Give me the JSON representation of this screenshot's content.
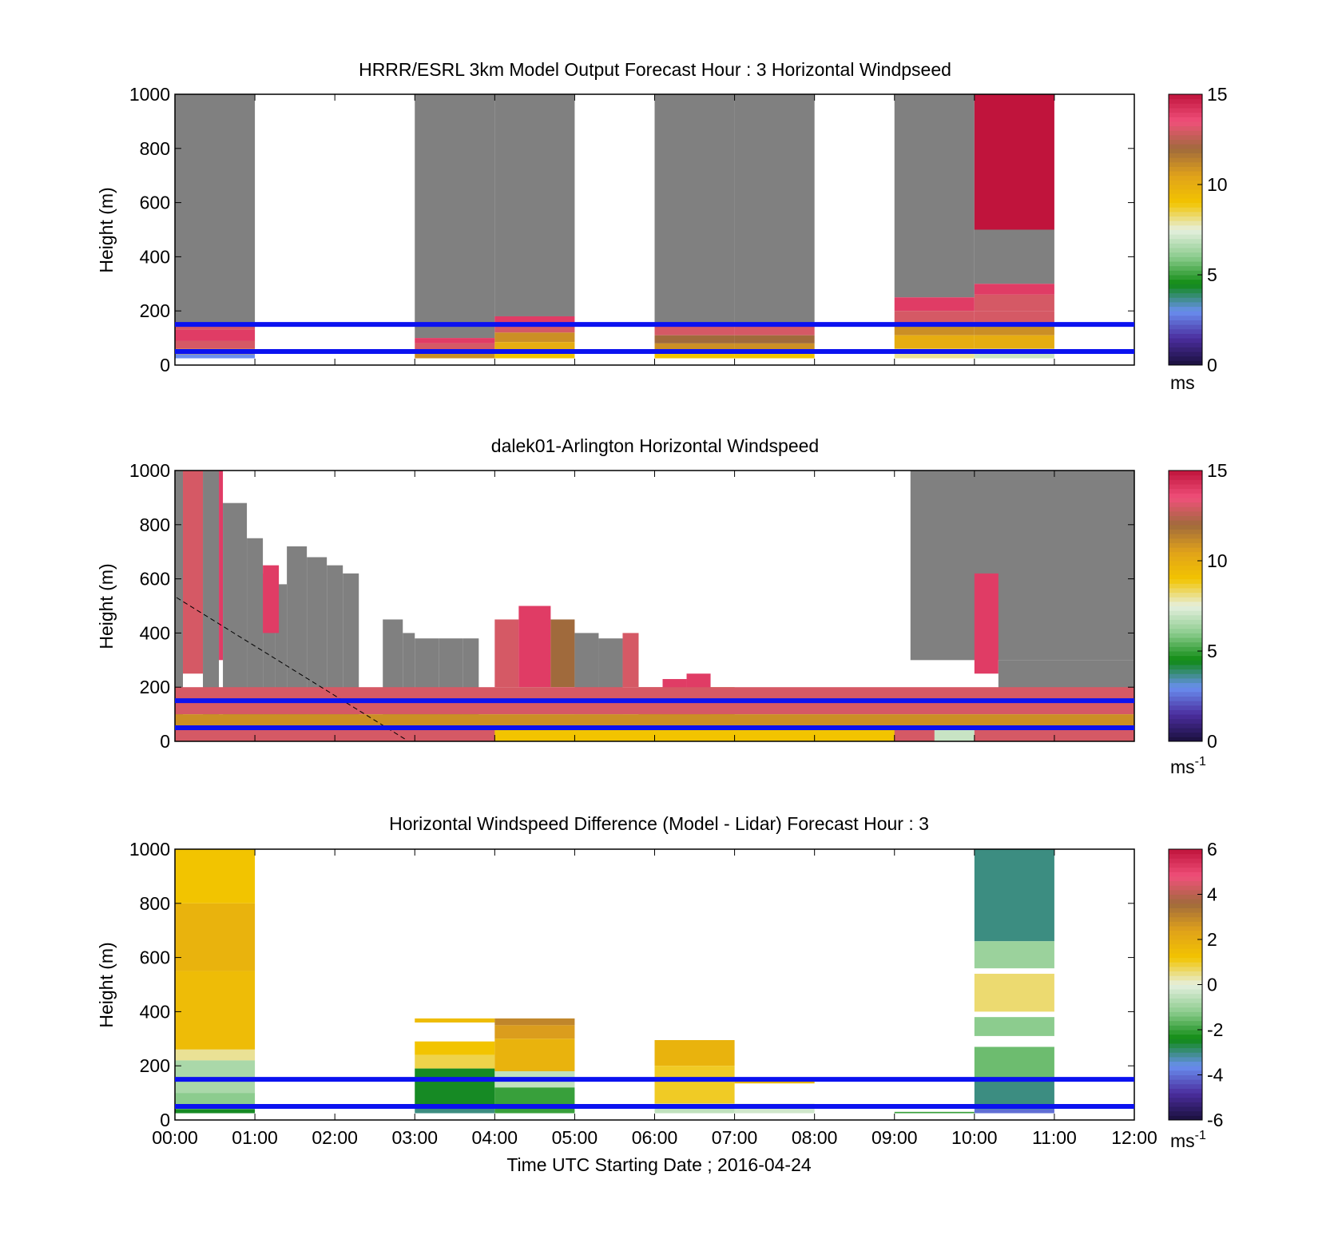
{
  "figure": {
    "x_label": "Time UTC  Starting Date ; 2016-04-24",
    "x_ticks": [
      "00:00",
      "01:00",
      "02:00",
      "03:00",
      "04:00",
      "05:00",
      "06:00",
      "07:00",
      "08:00",
      "09:00",
      "10:00",
      "11:00",
      "12:00"
    ],
    "y_label": "Height (m)",
    "guide_lines": {
      "heights_m": [
        150,
        50
      ],
      "color": "#0b12f0"
    }
  },
  "colors": {
    "gray": "#808080",
    "speed_scale": [
      "#1a0f3c",
      "#4b2e9e",
      "#6a8ff0",
      "#0e8a12",
      "#8ccc8e",
      "#e6f0df",
      "#f2c400",
      "#e0a21a",
      "#a06a3c",
      "#f0507a",
      "#c0143c"
    ],
    "diff_scale": [
      "#1a0f3c",
      "#4b2e9e",
      "#6a8ff0",
      "#0e8a12",
      "#8ccc8e",
      "#e6f0df",
      "#f2c400",
      "#e0a21a",
      "#a06a3c",
      "#f0507a",
      "#c0143c"
    ]
  },
  "chart_data": [
    {
      "type": "heatmap",
      "title": "HRRR/ESRL 3km Model Output   Forecast Hour : 3 Horizontal Windpseed",
      "xlabel": "",
      "ylabel": "Height (m)",
      "xlim": [
        0,
        12
      ],
      "ylim": [
        0,
        1000
      ],
      "y_ticks": [
        "0",
        "200",
        "400",
        "600",
        "800",
        "1000"
      ],
      "colorbar": {
        "min": 0,
        "max": 15,
        "ticks": [
          "0",
          "5",
          "10",
          "15"
        ],
        "unit": "ms"
      },
      "cells": [
        [
          0,
          1,
          150,
          1000,
          -1
        ],
        [
          0,
          1,
          130,
          150,
          13
        ],
        [
          0,
          1,
          90,
          130,
          14
        ],
        [
          0,
          1,
          60,
          90,
          13
        ],
        [
          0,
          1,
          40,
          60,
          11
        ],
        [
          0,
          1,
          25,
          40,
          3
        ],
        [
          3,
          4,
          100,
          1000,
          -1
        ],
        [
          3,
          4,
          80,
          100,
          14
        ],
        [
          3,
          4,
          55,
          80,
          13
        ],
        [
          3,
          4,
          25,
          55,
          11
        ],
        [
          4,
          5,
          180,
          1000,
          -1
        ],
        [
          4,
          5,
          150,
          180,
          14
        ],
        [
          4,
          5,
          120,
          150,
          13
        ],
        [
          4,
          5,
          85,
          120,
          11
        ],
        [
          4,
          5,
          55,
          85,
          10
        ],
        [
          4,
          5,
          25,
          55,
          9
        ],
        [
          6,
          7,
          150,
          1000,
          -1
        ],
        [
          6,
          7,
          110,
          150,
          13
        ],
        [
          6,
          7,
          80,
          110,
          12
        ],
        [
          6,
          7,
          55,
          80,
          11
        ],
        [
          6,
          7,
          25,
          55,
          9
        ],
        [
          7,
          8,
          150,
          1000,
          -1
        ],
        [
          7,
          8,
          110,
          150,
          13
        ],
        [
          7,
          8,
          80,
          110,
          12
        ],
        [
          7,
          8,
          55,
          80,
          11
        ],
        [
          7,
          8,
          25,
          55,
          9
        ],
        [
          9,
          10,
          250,
          1000,
          -1
        ],
        [
          9,
          10,
          200,
          250,
          14
        ],
        [
          9,
          10,
          150,
          200,
          13
        ],
        [
          9,
          10,
          110,
          150,
          11
        ],
        [
          9,
          10,
          60,
          110,
          10
        ],
        [
          9,
          10,
          25,
          60,
          8
        ],
        [
          10,
          11,
          500,
          1000,
          15
        ],
        [
          10,
          11,
          300,
          500,
          -1
        ],
        [
          10,
          11,
          260,
          300,
          14
        ],
        [
          10,
          11,
          200,
          260,
          13
        ],
        [
          10,
          11,
          150,
          200,
          13
        ],
        [
          10,
          11,
          110,
          150,
          11
        ],
        [
          10,
          11,
          60,
          110,
          10
        ],
        [
          10,
          11,
          25,
          60,
          7
        ]
      ]
    },
    {
      "type": "heatmap",
      "title": "dalek01-Arlington  Horizontal Windspeed",
      "xlabel": "",
      "ylabel": "Height (m)",
      "xlim": [
        0,
        12
      ],
      "ylim": [
        0,
        1000
      ],
      "y_ticks": [
        "0",
        "200",
        "400",
        "600",
        "800",
        "1000"
      ],
      "colorbar": {
        "min": 0,
        "max": 15,
        "ticks": [
          "0",
          "5",
          "10",
          "15"
        ],
        "unit": "ms-1"
      },
      "cells": [
        [
          0,
          0.1,
          0,
          1000,
          -1
        ],
        [
          0.1,
          0.35,
          250,
          1000,
          13
        ],
        [
          0.35,
          0.55,
          0,
          1000,
          -1
        ],
        [
          0.55,
          0.6,
          300,
          1000,
          14
        ],
        [
          0.6,
          0.9,
          0,
          880,
          -1
        ],
        [
          0.9,
          1.1,
          0,
          750,
          -1
        ],
        [
          1.1,
          1.25,
          0,
          620,
          -1
        ],
        [
          1.25,
          1.4,
          0,
          580,
          -1
        ],
        [
          1.1,
          1.3,
          400,
          650,
          14
        ],
        [
          1.4,
          1.65,
          0,
          720,
          -1
        ],
        [
          1.65,
          1.9,
          0,
          680,
          -1
        ],
        [
          1.9,
          2.1,
          0,
          650,
          -1
        ],
        [
          2.1,
          2.3,
          0,
          620,
          -1
        ],
        [
          2.6,
          2.85,
          0,
          450,
          -1
        ],
        [
          2.85,
          3,
          0,
          400,
          -1
        ],
        [
          3,
          3.3,
          0,
          380,
          -1
        ],
        [
          3.3,
          3.6,
          0,
          380,
          -1
        ],
        [
          3.6,
          3.8,
          0,
          380,
          -1
        ],
        [
          4,
          4.3,
          200,
          450,
          13
        ],
        [
          4.3,
          4.7,
          200,
          500,
          14
        ],
        [
          4.7,
          5,
          200,
          450,
          12
        ],
        [
          5,
          5.3,
          100,
          400,
          -1
        ],
        [
          5.3,
          5.6,
          100,
          380,
          -1
        ],
        [
          5.6,
          5.8,
          200,
          400,
          13
        ],
        [
          5.8,
          6.1,
          0,
          200,
          13
        ],
        [
          6.1,
          6.4,
          0,
          230,
          14
        ],
        [
          6.4,
          6.7,
          0,
          250,
          14
        ],
        [
          6.7,
          7,
          0,
          200,
          11
        ],
        [
          9.2,
          12,
          300,
          1000,
          -1
        ],
        [
          10,
          10.3,
          250,
          620,
          14
        ],
        [
          10.3,
          12,
          150,
          300,
          -1
        ],
        [
          0,
          12,
          100,
          200,
          13
        ],
        [
          0,
          12,
          50,
          100,
          11
        ],
        [
          0,
          12,
          0,
          50,
          13
        ],
        [
          4,
          9,
          0,
          50,
          9
        ],
        [
          9.5,
          10,
          0,
          50,
          7
        ]
      ]
    },
    {
      "type": "heatmap",
      "title": "Horizontal Windspeed Difference (Model - Lidar) Forecast Hour : 3",
      "xlabel": "Time UTC  Starting Date ; 2016-04-24",
      "ylabel": "Height (m)",
      "xlim": [
        0,
        12
      ],
      "ylim": [
        0,
        1000
      ],
      "y_ticks": [
        "0",
        "200",
        "400",
        "600",
        "800",
        "1000"
      ],
      "colorbar": {
        "min": -6,
        "max": 6,
        "ticks": [
          "-6",
          "-4",
          "-2",
          "0",
          "2",
          "4",
          "6"
        ],
        "unit": "ms-1"
      },
      "cells": [
        [
          0,
          1,
          800,
          1000,
          1.2
        ],
        [
          0,
          1,
          550,
          800,
          1.8
        ],
        [
          0,
          1,
          260,
          550,
          1.5
        ],
        [
          0,
          1,
          220,
          260,
          0.4
        ],
        [
          0,
          1,
          100,
          220,
          -0.8
        ],
        [
          0,
          1,
          40,
          100,
          -1.2
        ],
        [
          0,
          1,
          25,
          40,
          -2.5
        ],
        [
          3,
          4,
          360,
          375,
          1.5
        ],
        [
          3,
          4,
          240,
          290,
          1.2
        ],
        [
          3,
          4,
          190,
          240,
          0.8
        ],
        [
          3,
          4,
          50,
          190,
          -2.5
        ],
        [
          3,
          4,
          25,
          50,
          -3
        ],
        [
          4,
          5,
          350,
          375,
          3
        ],
        [
          4,
          5,
          300,
          350,
          2.5
        ],
        [
          4,
          5,
          180,
          300,
          1.8
        ],
        [
          4,
          5,
          120,
          180,
          -0.5
        ],
        [
          4,
          5,
          25,
          120,
          -2
        ],
        [
          6,
          7,
          200,
          295,
          1.8
        ],
        [
          6,
          7,
          60,
          200,
          1
        ],
        [
          6,
          7,
          25,
          60,
          -0.5
        ],
        [
          7,
          8,
          135,
          145,
          1.5
        ],
        [
          7,
          8,
          25,
          60,
          -0.3
        ],
        [
          9,
          10,
          25,
          30,
          -2
        ],
        [
          10,
          11,
          660,
          1000,
          -3
        ],
        [
          10,
          11,
          560,
          660,
          -1
        ],
        [
          10,
          11,
          400,
          540,
          0.6
        ],
        [
          10,
          11,
          310,
          380,
          -1.2
        ],
        [
          10,
          11,
          150,
          270,
          -1.5
        ],
        [
          10,
          11,
          40,
          150,
          -3
        ],
        [
          10,
          11,
          25,
          40,
          -4
        ]
      ]
    }
  ]
}
